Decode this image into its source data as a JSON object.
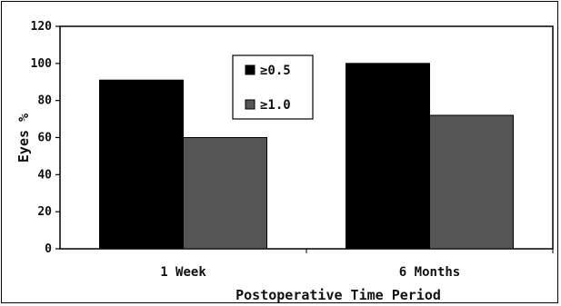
{
  "chart_data": {
    "type": "bar",
    "categories": [
      "1 Week",
      "6 Months"
    ],
    "series": [
      {
        "name": "≥0.5",
        "values": [
          91,
          100
        ],
        "color": "#000000"
      },
      {
        "name": "≥1.0",
        "values": [
          60,
          72
        ],
        "color": "#555555"
      }
    ],
    "title": "",
    "xlabel": "Postoperative Time Period",
    "ylabel": "Eyes %",
    "ylim": [
      0,
      120
    ],
    "yticks": [
      0,
      20,
      40,
      60,
      80,
      100,
      120
    ],
    "grid": false,
    "legend_position": "top-center"
  }
}
